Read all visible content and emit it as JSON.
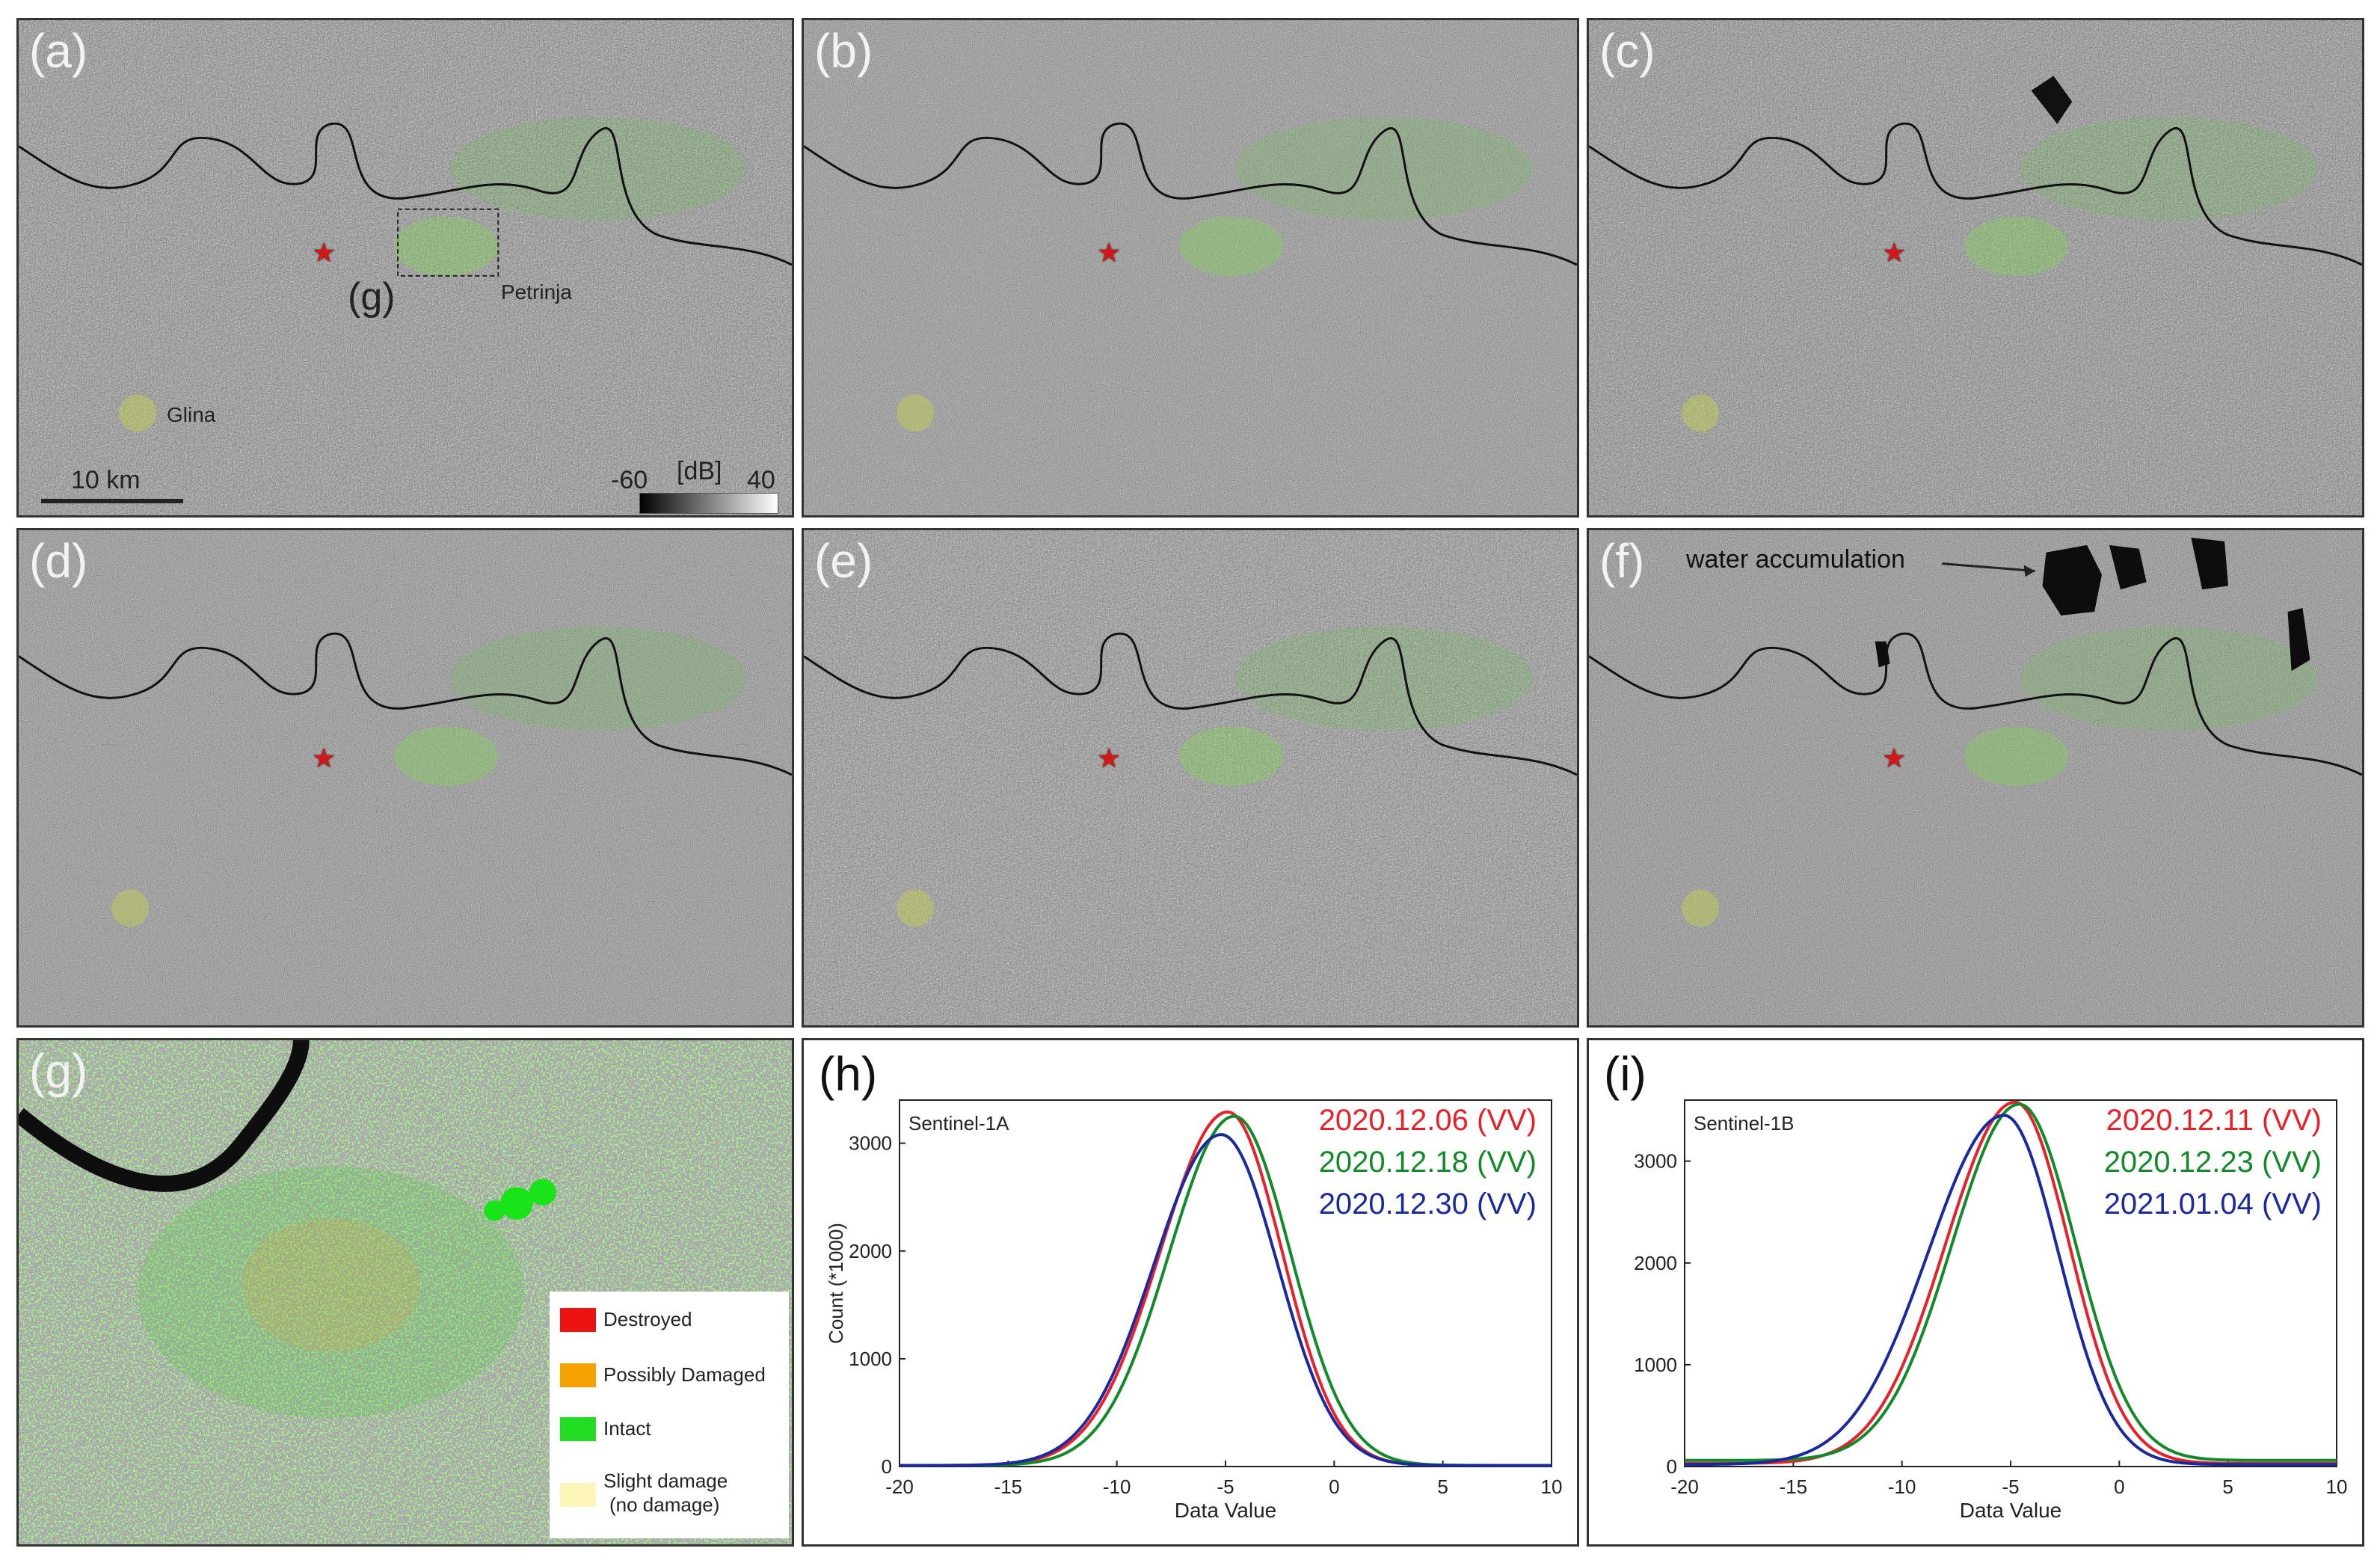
{
  "panels": {
    "a": {
      "label": "(a)"
    },
    "b": {
      "label": "(b)"
    },
    "c": {
      "label": "(c)"
    },
    "d": {
      "label": "(d)"
    },
    "e": {
      "label": "(e)"
    },
    "f": {
      "label": "(f)"
    },
    "g": {
      "label": "(g)"
    },
    "h": {
      "label": "(h)"
    },
    "i": {
      "label": "(i)"
    }
  },
  "map_annotations": {
    "inset_label": "(g)",
    "city_petrinja": "Petrinja",
    "city_glina": "Glina",
    "scale_label": "10 km",
    "colorbar_min": "-60",
    "colorbar_unit": "[dB]",
    "colorbar_max": "40",
    "water_label": "water accumulation"
  },
  "legend": {
    "items": [
      {
        "label": "Destroyed",
        "color": "#ee1111"
      },
      {
        "label": "Possibly Damaged",
        "color": "#f5a200"
      },
      {
        "label": "Intact",
        "color": "#22dd22"
      },
      {
        "label": "Slight damage",
        "label2": "(no damage)",
        "color": "#fdf5b8"
      }
    ]
  },
  "colors": {
    "epicenter": "#d01818",
    "buildings": "#5ecf3f"
  },
  "chart_data": [
    {
      "type": "line",
      "panel": "(h)",
      "title": "Sentinel-1A",
      "xlabel": "Data Value",
      "ylabel": "Count (*1000)",
      "xlim": [
        -20,
        10
      ],
      "ylim": [
        0,
        3400
      ],
      "xticks": [
        -20,
        -15,
        -10,
        -5,
        0,
        5,
        10
      ],
      "yticks": [
        0,
        1000,
        2000,
        3000
      ],
      "series": [
        {
          "name": "2020.12.06 (VV)",
          "color": "#e8202a",
          "peak_x": -4.9,
          "peak_y": 3290,
          "sigma_left": 3.1,
          "sigma_right": 2.5,
          "base": 10
        },
        {
          "name": "2020.12.18 (VV)",
          "color": "#138a2a",
          "peak_x": -4.6,
          "peak_y": 3250,
          "sigma_left": 3.0,
          "sigma_right": 2.6,
          "base": 10
        },
        {
          "name": "2020.12.30 (VV)",
          "color": "#1a2a9e",
          "peak_x": -5.2,
          "peak_y": 3080,
          "sigma_left": 3.1,
          "sigma_right": 2.6,
          "base": 10
        }
      ]
    },
    {
      "type": "line",
      "panel": "(i)",
      "title": "Sentinel-1B",
      "xlabel": "Data Value",
      "ylabel": "",
      "xlim": [
        -20,
        10
      ],
      "ylim": [
        0,
        3600
      ],
      "xticks": [
        -20,
        -15,
        -10,
        -5,
        0,
        5,
        10
      ],
      "yticks": [
        0,
        1000,
        2000,
        3000
      ],
      "series": [
        {
          "name": "2020.12.11 (VV)",
          "color": "#e8202a",
          "peak_x": -4.8,
          "peak_y": 3580,
          "sigma_left": 3.2,
          "sigma_right": 2.5,
          "base": 30
        },
        {
          "name": "2020.12.23 (VV)",
          "color": "#138a2a",
          "peak_x": -4.6,
          "peak_y": 3560,
          "sigma_left": 3.1,
          "sigma_right": 2.6,
          "base": 60
        },
        {
          "name": "2021.01.04 (VV)",
          "color": "#1a2a9e",
          "peak_x": -5.3,
          "peak_y": 3450,
          "sigma_left": 3.5,
          "sigma_right": 2.5,
          "base": 20
        }
      ]
    }
  ]
}
